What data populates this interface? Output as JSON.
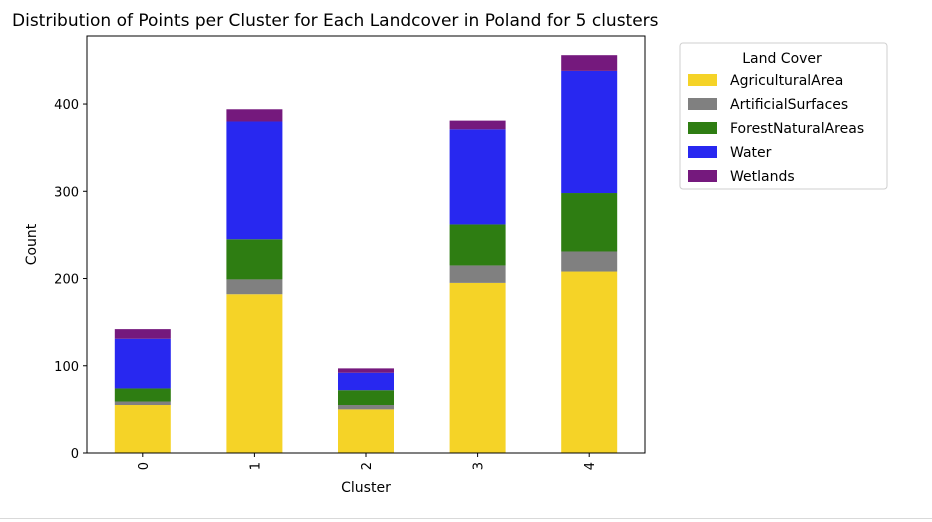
{
  "chart_data": {
    "type": "bar",
    "stacked": true,
    "title": "Distribution of Points per Cluster for Each Landcover in Poland for 5 clusters",
    "xlabel": "Cluster",
    "ylabel": "Count",
    "categories": [
      "0",
      "1",
      "2",
      "3",
      "4"
    ],
    "ylim": [
      0,
      478
    ],
    "yticks": [
      0,
      100,
      200,
      300,
      400
    ],
    "grid": false,
    "legend_title": "Land Cover",
    "legend_position": "outside-top-right",
    "series": [
      {
        "name": "AgriculturalArea",
        "color": "#f5d327",
        "values": [
          55,
          182,
          50,
          195,
          208
        ]
      },
      {
        "name": "ArtificialSurfaces",
        "color": "#808080",
        "values": [
          4,
          17,
          5,
          20,
          23
        ]
      },
      {
        "name": "ForestNaturalAreas",
        "color": "#2e7d12",
        "values": [
          15,
          46,
          17,
          47,
          67
        ]
      },
      {
        "name": "Water",
        "color": "#2828f0",
        "values": [
          57,
          135,
          20,
          109,
          140
        ]
      },
      {
        "name": "Wetlands",
        "color": "#75197d",
        "values": [
          11,
          14,
          5,
          10,
          18
        ]
      }
    ]
  }
}
